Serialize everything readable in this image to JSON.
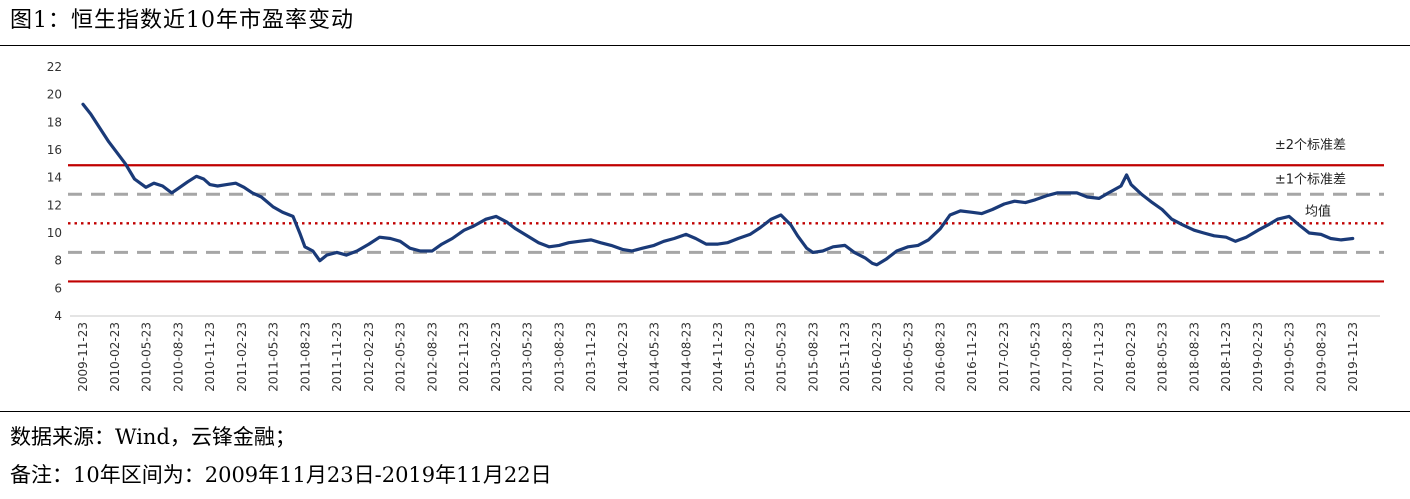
{
  "title": "图1：恒生指数近10年市盈率变动",
  "source": "数据来源：Wind，云锋金融；",
  "note": "备注：10年区间为：2009年11月23日-2019年11月22日",
  "colors": {
    "series": "#1a3a78",
    "band2": "#c00000",
    "mean": "#c00000",
    "band1": "#a6a6a6"
  },
  "chart_data": {
    "type": "line",
    "ylim": [
      4,
      22
    ],
    "yticks": [
      4,
      6,
      8,
      10,
      12,
      14,
      16,
      18,
      20,
      22
    ],
    "xlabels": [
      "2009-11-23",
      "2010-02-23",
      "2010-05-23",
      "2010-08-23",
      "2010-11-23",
      "2011-02-23",
      "2011-05-23",
      "2011-08-23",
      "2011-11-23",
      "2012-02-23",
      "2012-05-23",
      "2012-08-23",
      "2012-11-23",
      "2013-02-23",
      "2013-05-23",
      "2013-08-23",
      "2013-11-23",
      "2014-02-23",
      "2014-05-23",
      "2014-08-23",
      "2014-11-23",
      "2015-02-23",
      "2015-05-23",
      "2015-08-23",
      "2015-11-23",
      "2016-02-23",
      "2016-05-23",
      "2016-08-23",
      "2016-11-23",
      "2017-02-23",
      "2017-05-23",
      "2017-08-23",
      "2017-11-23",
      "2018-02-23",
      "2018-05-23",
      "2018-08-23",
      "2018-11-23",
      "2019-02-23",
      "2019-05-23",
      "2019-08-23",
      "2019-11-23"
    ],
    "series": [
      {
        "x": [
          "2009-11-23",
          "2009-12-15",
          "2010-01-10",
          "2010-02-05",
          "2010-03-01",
          "2010-03-25",
          "2010-04-20",
          "2010-05-23",
          "2010-06-15",
          "2010-07-10",
          "2010-08-05",
          "2010-08-23",
          "2010-09-20",
          "2010-10-15",
          "2010-11-05",
          "2010-11-23",
          "2010-12-15",
          "2011-01-10",
          "2011-02-05",
          "2011-03-01",
          "2011-03-25",
          "2011-04-20",
          "2011-05-23",
          "2011-06-20",
          "2011-07-20",
          "2011-08-10",
          "2011-08-23",
          "2011-09-15",
          "2011-10-05",
          "2011-10-25",
          "2011-11-23",
          "2011-12-20",
          "2012-01-20",
          "2012-02-23",
          "2012-03-25",
          "2012-04-25",
          "2012-05-23",
          "2012-06-20",
          "2012-07-20",
          "2012-08-23",
          "2012-09-20",
          "2012-10-20",
          "2012-11-23",
          "2012-12-20",
          "2013-01-25",
          "2013-02-23",
          "2013-03-25",
          "2013-04-20",
          "2013-05-23",
          "2013-06-25",
          "2013-07-25",
          "2013-08-23",
          "2013-09-20",
          "2013-10-20",
          "2013-11-23",
          "2013-12-20",
          "2014-01-20",
          "2014-02-23",
          "2014-03-20",
          "2014-04-20",
          "2014-05-23",
          "2014-06-20",
          "2014-07-20",
          "2014-08-23",
          "2014-09-20",
          "2014-10-20",
          "2014-11-23",
          "2014-12-20",
          "2015-01-20",
          "2015-02-23",
          "2015-03-25",
          "2015-04-25",
          "2015-05-23",
          "2015-06-20",
          "2015-07-10",
          "2015-08-05",
          "2015-08-23",
          "2015-09-20",
          "2015-10-20",
          "2015-11-23",
          "2015-12-20",
          "2016-01-20",
          "2016-02-10",
          "2016-02-23",
          "2016-03-20",
          "2016-04-20",
          "2016-05-23",
          "2016-06-20",
          "2016-07-20",
          "2016-08-23",
          "2016-09-20",
          "2016-10-20",
          "2016-11-23",
          "2016-12-20",
          "2017-01-20",
          "2017-02-23",
          "2017-03-25",
          "2017-04-25",
          "2017-05-23",
          "2017-06-25",
          "2017-07-25",
          "2017-08-23",
          "2017-09-20",
          "2017-10-20",
          "2017-11-23",
          "2017-12-20",
          "2018-01-25",
          "2018-02-10",
          "2018-02-23",
          "2018-03-25",
          "2018-04-25",
          "2018-05-23",
          "2018-06-20",
          "2018-07-20",
          "2018-08-23",
          "2018-09-20",
          "2018-10-20",
          "2018-11-23",
          "2018-12-20",
          "2019-01-20",
          "2019-02-23",
          "2019-03-25",
          "2019-04-20",
          "2019-05-23",
          "2019-06-20",
          "2019-07-20",
          "2019-08-23",
          "2019-09-20",
          "2019-10-20",
          "2019-11-22"
        ],
        "values": [
          19.3,
          18.6,
          17.6,
          16.6,
          15.8,
          15.0,
          13.9,
          13.3,
          13.6,
          13.4,
          12.9,
          13.2,
          13.7,
          14.1,
          13.9,
          13.5,
          13.4,
          13.5,
          13.6,
          13.3,
          12.9,
          12.6,
          11.9,
          11.5,
          11.2,
          9.9,
          9.0,
          8.7,
          8.0,
          8.4,
          8.6,
          8.4,
          8.7,
          9.2,
          9.7,
          9.6,
          9.4,
          8.9,
          8.7,
          8.7,
          9.2,
          9.6,
          10.2,
          10.5,
          11.0,
          11.2,
          10.8,
          10.3,
          9.8,
          9.3,
          9.0,
          9.1,
          9.3,
          9.4,
          9.5,
          9.3,
          9.1,
          8.8,
          8.7,
          8.9,
          9.1,
          9.4,
          9.6,
          9.9,
          9.6,
          9.2,
          9.2,
          9.3,
          9.6,
          9.9,
          10.4,
          11.0,
          11.3,
          10.6,
          9.8,
          8.9,
          8.6,
          8.7,
          9.0,
          9.1,
          8.6,
          8.2,
          7.8,
          7.7,
          8.1,
          8.7,
          9.0,
          9.1,
          9.5,
          10.3,
          11.3,
          11.6,
          11.5,
          11.4,
          11.7,
          12.1,
          12.3,
          12.2,
          12.4,
          12.7,
          12.9,
          12.9,
          12.9,
          12.6,
          12.5,
          12.9,
          13.4,
          14.2,
          13.5,
          12.8,
          12.2,
          11.7,
          11.0,
          10.6,
          10.2,
          10.0,
          9.8,
          9.7,
          9.4,
          9.7,
          10.2,
          10.6,
          11.0,
          11.2,
          10.6,
          10.0,
          9.9,
          9.6,
          9.5,
          9.6
        ]
      }
    ],
    "reference_lines": [
      {
        "label": "±2个标准差",
        "upper": 14.9,
        "lower": 6.5,
        "style": "solid"
      },
      {
        "label": "±1个标准差",
        "upper": 12.8,
        "lower": 8.6,
        "style": "dashed"
      },
      {
        "label": "均值",
        "value": 10.7,
        "style": "dotted"
      }
    ],
    "grid": false
  }
}
